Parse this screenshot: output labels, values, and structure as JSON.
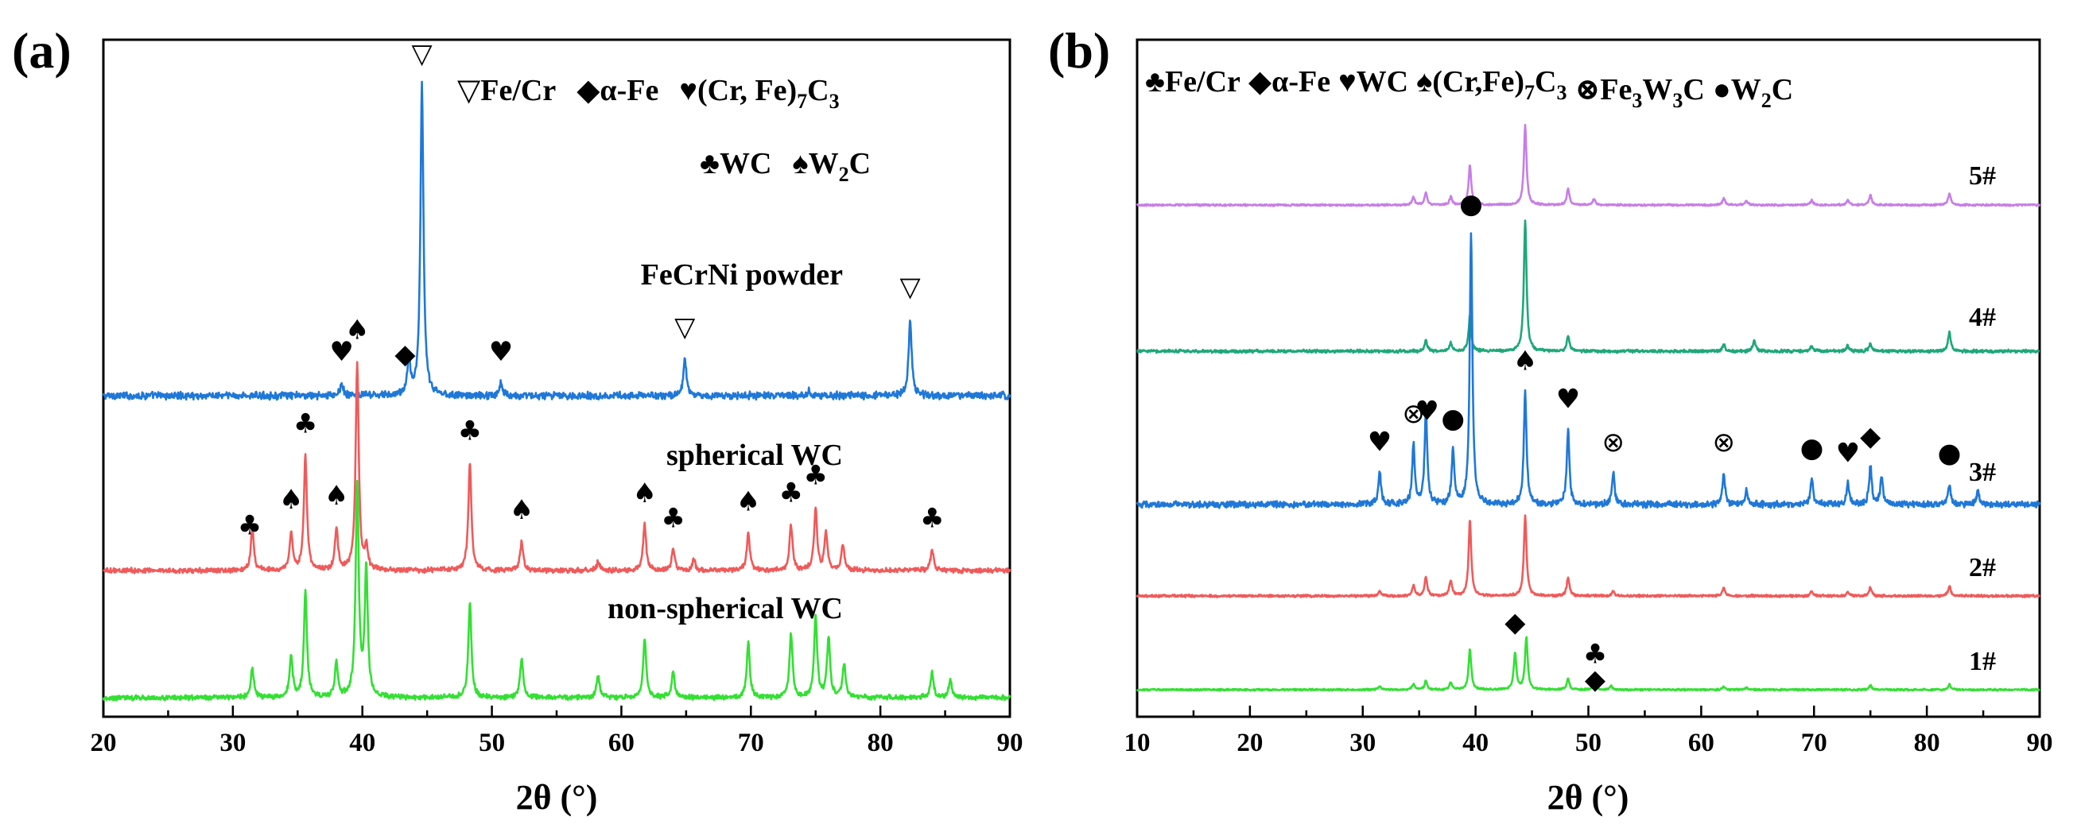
{
  "chart_data": [
    {
      "panel": "(a)",
      "type": "line",
      "xlabel": "2θ (°)",
      "ylabel": "",
      "xlim": [
        20,
        90
      ],
      "xticks": [
        "20",
        "30",
        "40",
        "50",
        "60",
        "70",
        "80",
        "90"
      ],
      "legend": {
        "row1": [
          {
            "symbol": "▽",
            "text": "Fe/Cr"
          },
          {
            "symbol": "◆",
            "text": "α-Fe"
          },
          {
            "symbol": "♥",
            "text": "(Cr, Fe)",
            "sub1": "7",
            "text2": "C",
            "sub2": "3"
          }
        ],
        "row2": [
          {
            "symbol": "♣",
            "text": "WC"
          },
          {
            "symbol": "♠",
            "text": "W",
            "sub1": "2",
            "text2": "C"
          }
        ]
      },
      "series": [
        {
          "name": "FeCrNi powder",
          "color": "#1f78d8",
          "peaks": [
            [
              38.4,
              0.04
            ],
            [
              43.6,
              0.12
            ],
            [
              44.6,
              1.0
            ],
            [
              50.7,
              0.04
            ],
            [
              64.9,
              0.12
            ],
            [
              82.3,
              0.25
            ],
            [
              74.5,
              0.015
            ]
          ],
          "markers": [
            {
              "x": 38.4,
              "symbol": "♥"
            },
            {
              "x": 43.3,
              "symbol": "◆"
            },
            {
              "x": 44.6,
              "symbol": "▽"
            },
            {
              "x": 50.7,
              "symbol": "♥"
            },
            {
              "x": 64.9,
              "symbol": "▽"
            },
            {
              "x": 82.3,
              "symbol": "▽"
            }
          ]
        },
        {
          "name": "spherical WC",
          "color": "#f05a5a",
          "peaks": [
            [
              31.5,
              0.2
            ],
            [
              34.5,
              0.18
            ],
            [
              35.6,
              0.55
            ],
            [
              38.0,
              0.2
            ],
            [
              39.6,
              1.0
            ],
            [
              40.3,
              0.1
            ],
            [
              48.3,
              0.52
            ],
            [
              52.3,
              0.14
            ],
            [
              58.2,
              0.04
            ],
            [
              61.8,
              0.22
            ],
            [
              64.0,
              0.1
            ],
            [
              65.6,
              0.05
            ],
            [
              69.8,
              0.18
            ],
            [
              73.1,
              0.22
            ],
            [
              75.0,
              0.3
            ],
            [
              75.8,
              0.18
            ],
            [
              77.1,
              0.12
            ],
            [
              84.0,
              0.1
            ]
          ],
          "markers": [
            {
              "x": 31.3,
              "symbol": "♣"
            },
            {
              "x": 34.5,
              "symbol": "♠"
            },
            {
              "x": 35.6,
              "symbol": "♣"
            },
            {
              "x": 38.0,
              "symbol": "♠"
            },
            {
              "x": 39.6,
              "symbol": "♠"
            },
            {
              "x": 48.3,
              "symbol": "♣"
            },
            {
              "x": 52.3,
              "symbol": "♠"
            },
            {
              "x": 61.8,
              "symbol": "♠"
            },
            {
              "x": 64.0,
              "symbol": "♣"
            },
            {
              "x": 69.8,
              "symbol": "♠"
            },
            {
              "x": 73.1,
              "symbol": "♣"
            },
            {
              "x": 75.0,
              "symbol": "♣"
            },
            {
              "x": 84.0,
              "symbol": "♣"
            }
          ]
        },
        {
          "name": "non-spherical WC",
          "color": "#33e033",
          "peaks": [
            [
              31.5,
              0.14
            ],
            [
              34.5,
              0.2
            ],
            [
              35.6,
              0.5
            ],
            [
              38.0,
              0.16
            ],
            [
              39.6,
              1.0
            ],
            [
              40.3,
              0.6
            ],
            [
              48.3,
              0.45
            ],
            [
              52.3,
              0.18
            ],
            [
              58.2,
              0.1
            ],
            [
              61.8,
              0.28
            ],
            [
              64.0,
              0.12
            ],
            [
              69.8,
              0.26
            ],
            [
              73.1,
              0.3
            ],
            [
              75.0,
              0.38
            ],
            [
              76.0,
              0.28
            ],
            [
              77.2,
              0.16
            ],
            [
              84.0,
              0.12
            ],
            [
              85.4,
              0.08
            ]
          ],
          "markers": []
        }
      ]
    },
    {
      "panel": "(b)",
      "type": "line",
      "xlabel": "2θ (°)",
      "ylabel": "",
      "xlim": [
        10,
        90
      ],
      "xticks": [
        "10",
        "20",
        "30",
        "40",
        "50",
        "60",
        "70",
        "80",
        "90"
      ],
      "legend": {
        "row1": [
          {
            "symbol": "♣",
            "text": "Fe/Cr"
          },
          {
            "symbol": "◆",
            "text": "α-Fe"
          },
          {
            "symbol": "♥",
            "text": "WC"
          },
          {
            "symbol": "♠",
            "text": "(Cr,Fe)",
            "sub1": "7",
            "text2": "C",
            "sub2": "3"
          },
          {
            "symbol": "⊗",
            "text": "Fe",
            "sub1": "3",
            "text2": "W",
            "sub2": "3",
            "text3": "C"
          },
          {
            "symbol": "●",
            "text": "W",
            "sub1": "2",
            "text2": "C"
          }
        ]
      },
      "series": [
        {
          "name": "5#",
          "color": "#c77ee6",
          "peaks": [
            [
              34.5,
              0.1
            ],
            [
              35.6,
              0.15
            ],
            [
              37.8,
              0.1
            ],
            [
              39.5,
              0.5
            ],
            [
              44.4,
              1.0
            ],
            [
              48.2,
              0.2
            ],
            [
              50.5,
              0.08
            ],
            [
              62.0,
              0.08
            ],
            [
              64.0,
              0.05
            ],
            [
              69.8,
              0.06
            ],
            [
              73.0,
              0.06
            ],
            [
              75.0,
              0.12
            ],
            [
              82.0,
              0.15
            ]
          ],
          "markers": []
        },
        {
          "name": "4#",
          "color": "#1fa77a",
          "peaks": [
            [
              35.6,
              0.08
            ],
            [
              37.8,
              0.06
            ],
            [
              39.5,
              0.27
            ],
            [
              44.4,
              1.0
            ],
            [
              48.2,
              0.12
            ],
            [
              62.0,
              0.05
            ],
            [
              64.7,
              0.08
            ],
            [
              69.8,
              0.04
            ],
            [
              73.0,
              0.04
            ],
            [
              75.0,
              0.06
            ],
            [
              82.0,
              0.15
            ]
          ],
          "markers": []
        },
        {
          "name": "3#",
          "color": "#1f78d8",
          "peaks": [
            [
              31.5,
              0.12
            ],
            [
              34.5,
              0.22
            ],
            [
              35.6,
              0.35
            ],
            [
              38.0,
              0.2
            ],
            [
              39.6,
              1.0
            ],
            [
              44.4,
              0.42
            ],
            [
              48.2,
              0.28
            ],
            [
              52.2,
              0.12
            ],
            [
              62.0,
              0.12
            ],
            [
              64.0,
              0.05
            ],
            [
              69.8,
              0.1
            ],
            [
              73.0,
              0.08
            ],
            [
              75.0,
              0.14
            ],
            [
              76.0,
              0.1
            ],
            [
              82.0,
              0.08
            ],
            [
              84.5,
              0.05
            ]
          ],
          "markers": [
            {
              "x": 31.5,
              "symbol": "♥"
            },
            {
              "x": 34.5,
              "symbol": "⊗"
            },
            {
              "x": 35.7,
              "symbol": "♥"
            },
            {
              "x": 38.0,
              "symbol": "●"
            },
            {
              "x": 39.6,
              "symbol": "●"
            },
            {
              "x": 44.4,
              "symbol": "♠"
            },
            {
              "x": 48.2,
              "symbol": "♥"
            },
            {
              "x": 52.2,
              "symbol": "⊗"
            },
            {
              "x": 62.0,
              "symbol": "⊗"
            },
            {
              "x": 69.8,
              "symbol": "●"
            },
            {
              "x": 73.0,
              "symbol": "♥"
            },
            {
              "x": 75.0,
              "symbol": "◆"
            },
            {
              "x": 82.0,
              "symbol": "●"
            }
          ]
        },
        {
          "name": "2#",
          "color": "#f05a5a",
          "peaks": [
            [
              31.5,
              0.05
            ],
            [
              34.5,
              0.1
            ],
            [
              35.6,
              0.18
            ],
            [
              37.8,
              0.15
            ],
            [
              39.5,
              0.73
            ],
            [
              44.4,
              0.78
            ],
            [
              48.2,
              0.18
            ],
            [
              52.2,
              0.04
            ],
            [
              62.0,
              0.08
            ],
            [
              69.8,
              0.05
            ],
            [
              73.0,
              0.04
            ],
            [
              75.0,
              0.08
            ],
            [
              82.0,
              0.1
            ]
          ],
          "markers": []
        },
        {
          "name": "1#",
          "color": "#33e033",
          "peaks": [
            [
              31.5,
              0.05
            ],
            [
              34.5,
              0.08
            ],
            [
              35.6,
              0.12
            ],
            [
              37.8,
              0.1
            ],
            [
              39.5,
              0.55
            ],
            [
              43.5,
              0.5
            ],
            [
              44.5,
              0.72
            ],
            [
              48.2,
              0.15
            ],
            [
              50.5,
              0.12
            ],
            [
              52.0,
              0.05
            ],
            [
              62.0,
              0.04
            ],
            [
              64.0,
              0.03
            ],
            [
              75.0,
              0.06
            ],
            [
              82.0,
              0.07
            ]
          ],
          "markers": [
            {
              "x": 43.5,
              "symbol": "◆"
            },
            {
              "x": 50.6,
              "symbol": "♣"
            },
            {
              "x": 50.6,
              "symbol": "◆",
              "stack": 1
            }
          ]
        }
      ]
    }
  ]
}
